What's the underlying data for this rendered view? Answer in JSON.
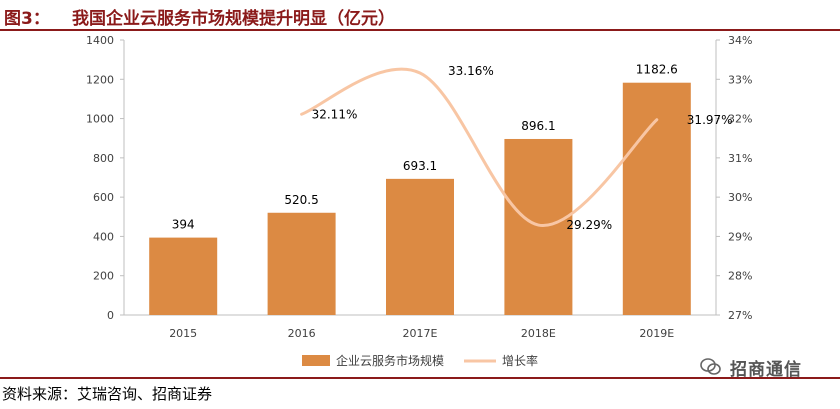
{
  "header": {
    "figure_label": "图3：",
    "title": "我国企业云服务市场规模提升明显（亿元）"
  },
  "footer": {
    "source": "资料来源：艾瑞咨询、招商证券",
    "watermark": "招商通信"
  },
  "colors": {
    "bar": "#dc8a43",
    "line": "#f8c6a4",
    "accent": "#8b1a1a"
  },
  "chart_data": {
    "type": "bar+line",
    "title": "我国企业云服务市场规模提升明显（亿元）",
    "categories": [
      "2015",
      "2016",
      "2017E",
      "2018E",
      "2019E"
    ],
    "series": [
      {
        "name": "企业云服务市场规模",
        "type": "bar",
        "axis": "left",
        "values": [
          394,
          520.5,
          693.1,
          896.1,
          1182.6
        ],
        "labels": [
          "394",
          "520.5",
          "693.1",
          "896.1",
          "1182.6"
        ]
      },
      {
        "name": "增长率",
        "type": "line",
        "axis": "right",
        "values": [
          null,
          32.11,
          33.16,
          29.29,
          31.97
        ],
        "labels": [
          "",
          "32.11%",
          "33.16%",
          "29.29%",
          "31.97%"
        ]
      }
    ],
    "y_left": {
      "min": 0,
      "max": 1400,
      "step": 200,
      "ticks": [
        "0",
        "200",
        "400",
        "600",
        "800",
        "1000",
        "1200",
        "1400"
      ]
    },
    "y_right": {
      "min": 27,
      "max": 34,
      "step": 1,
      "ticks": [
        "27%",
        "28%",
        "29%",
        "30%",
        "31%",
        "32%",
        "33%",
        "34%"
      ]
    },
    "legend": {
      "position": "bottom",
      "entries": [
        "企业云服务市场规模",
        "增长率"
      ]
    },
    "grid": false
  }
}
